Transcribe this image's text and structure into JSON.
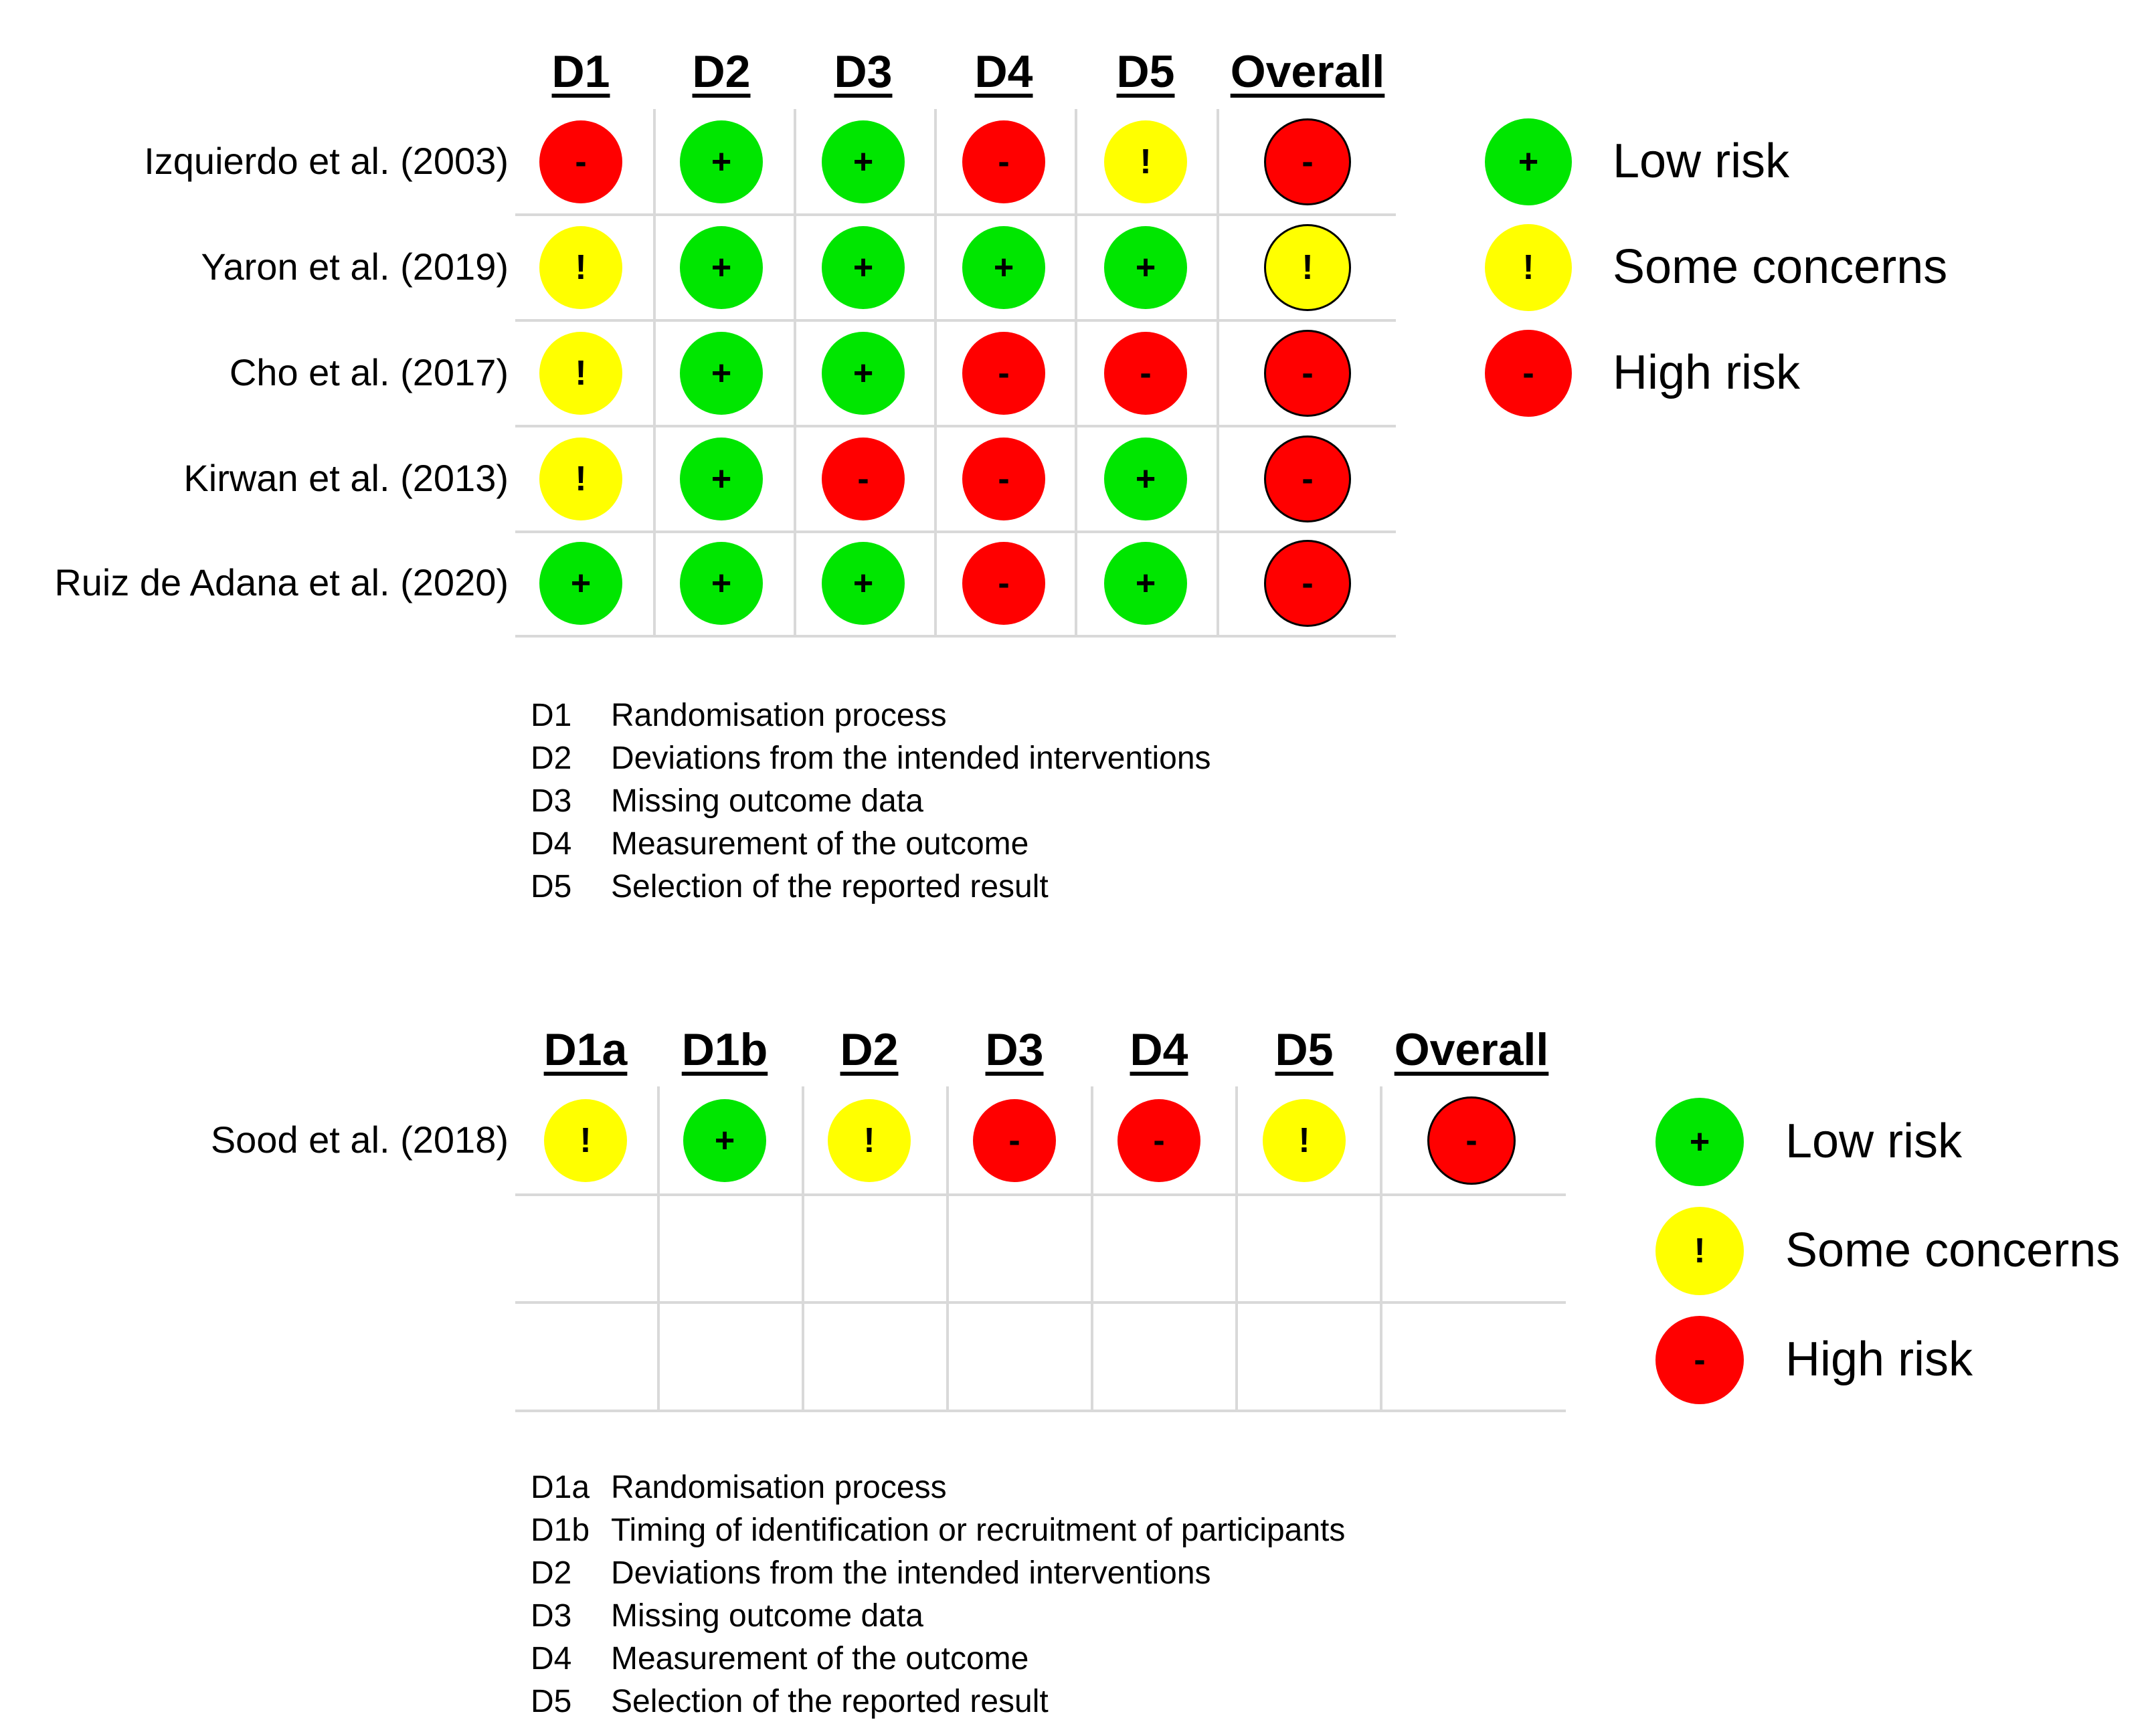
{
  "colors": {
    "low": "#00e600",
    "some": "#ffff00",
    "high": "#ff0000"
  },
  "symbols": {
    "low": "+",
    "some": "!",
    "high": "-"
  },
  "panel1": {
    "headers": [
      "D1",
      "D2",
      "D3",
      "D4",
      "D5",
      "Overall"
    ],
    "rows": [
      {
        "study": "Izquierdo et al. (2003)",
        "judgements": [
          "high",
          "low",
          "low",
          "high",
          "some",
          "high"
        ]
      },
      {
        "study": "Yaron et al. (2019)",
        "judgements": [
          "some",
          "low",
          "low",
          "low",
          "low",
          "some"
        ]
      },
      {
        "study": "Cho et al. (2017)",
        "judgements": [
          "some",
          "low",
          "low",
          "high",
          "high",
          "high"
        ]
      },
      {
        "study": "Kirwan et al. (2013)",
        "judgements": [
          "some",
          "low",
          "high",
          "high",
          "low",
          "high"
        ]
      },
      {
        "study": "Ruiz de Adana et al. (2020)",
        "judgements": [
          "low",
          "low",
          "low",
          "high",
          "low",
          "high"
        ]
      }
    ],
    "legend": [
      {
        "level": "low",
        "label": "Low risk"
      },
      {
        "level": "some",
        "label": "Some concerns"
      },
      {
        "level": "high",
        "label": "High risk"
      }
    ],
    "key": [
      {
        "code": "D1",
        "text": "Randomisation process"
      },
      {
        "code": "D2",
        "text": "Deviations from the intended interventions"
      },
      {
        "code": "D3",
        "text": "Missing outcome data"
      },
      {
        "code": "D4",
        "text": "Measurement of the outcome"
      },
      {
        "code": "D5",
        "text": "Selection of the reported result"
      }
    ]
  },
  "panel2": {
    "headers": [
      "D1a",
      "D1b",
      "D2",
      "D3",
      "D4",
      "D5",
      "Overall"
    ],
    "rows": [
      {
        "study": "Sood et al. (2018)",
        "judgements": [
          "some",
          "low",
          "some",
          "high",
          "high",
          "some",
          "high"
        ]
      }
    ],
    "legend": [
      {
        "level": "low",
        "label": "Low risk"
      },
      {
        "level": "some",
        "label": "Some concerns"
      },
      {
        "level": "high",
        "label": "High risk"
      }
    ],
    "key": [
      {
        "code": "D1a",
        "text": "Randomisation process"
      },
      {
        "code": "D1b",
        "text": "Timing of identification or recruitment of participants"
      },
      {
        "code": "D2",
        "text": "Deviations from the intended interventions"
      },
      {
        "code": "D3",
        "text": "Missing outcome data"
      },
      {
        "code": "D4",
        "text": "Measurement of the outcome"
      },
      {
        "code": "D5",
        "text": "Selection of the reported result"
      }
    ]
  }
}
